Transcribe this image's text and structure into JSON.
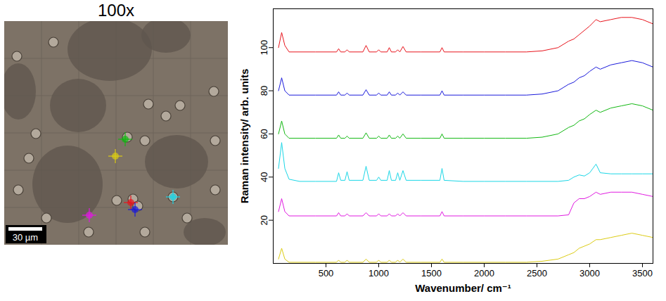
{
  "image": {
    "title": "100x",
    "scale_bar": "30 µm"
  },
  "chart_data": {
    "type": "line",
    "xlabel": "Wavenumber/ cm⁻¹",
    "ylabel": "Raman intensity/ arb. units",
    "xlim": [
      0,
      3600
    ],
    "ylim": [
      0,
      118
    ],
    "xticks": [
      500,
      1000,
      1500,
      2000,
      2500,
      3000,
      3500
    ],
    "yticks": [
      20,
      40,
      60,
      80,
      100
    ],
    "grid": false,
    "x": [
      50,
      80,
      110,
      150,
      250,
      400,
      600,
      620,
      640,
      680,
      700,
      720,
      850,
      880,
      910,
      980,
      1000,
      1020,
      1080,
      1100,
      1120,
      1160,
      1180,
      1200,
      1230,
      1260,
      1400,
      1580,
      1600,
      1620,
      1800,
      2000,
      2200,
      2400,
      2550,
      2700,
      2800,
      2850,
      2900,
      2950,
      3000,
      3060,
      3100,
      3200,
      3300,
      3400,
      3500,
      3600
    ],
    "series": [
      {
        "color": "#e8141c",
        "values": [
          100,
          107,
          101,
          98,
          98,
          98,
          98,
          99.5,
          98,
          98,
          99,
          98,
          98,
          101,
          98,
          98,
          99,
          98,
          98,
          100,
          98,
          98,
          99,
          98,
          100.5,
          98,
          98,
          98,
          100,
          98,
          98,
          98,
          98,
          98,
          98.5,
          100,
          103,
          104,
          106,
          108,
          110,
          113,
          112,
          113,
          114,
          114,
          113,
          111
        ]
      },
      {
        "color": "#1a1adb",
        "values": [
          80,
          86,
          80,
          78,
          78,
          78,
          78,
          79.5,
          78,
          78,
          79,
          78,
          78,
          80.5,
          78,
          78,
          79,
          78,
          78,
          79.5,
          78,
          78,
          79,
          78,
          79.5,
          78,
          78,
          78,
          80,
          78,
          78,
          78,
          78,
          78,
          78.5,
          80,
          83,
          84,
          86,
          87,
          89,
          91,
          90,
          92,
          93,
          94,
          93,
          91
        ]
      },
      {
        "color": "#12b812",
        "values": [
          60,
          66,
          60,
          58,
          58,
          58,
          58,
          59.5,
          58,
          58,
          59,
          58,
          58,
          60.5,
          58,
          58,
          59,
          58,
          58,
          59.5,
          58,
          58,
          59,
          58,
          60,
          58,
          58,
          58,
          60,
          58,
          58,
          58,
          58,
          58,
          58.5,
          60,
          63,
          64,
          66,
          67,
          69,
          71,
          70,
          72,
          73,
          74,
          73,
          71
        ]
      },
      {
        "color": "#1ad6e6",
        "values": [
          44,
          56,
          44,
          39,
          38,
          38,
          38,
          42,
          38.5,
          38.5,
          42.5,
          38.5,
          38.5,
          45,
          38.5,
          38.5,
          40,
          38.5,
          38.5,
          43,
          38.5,
          38.5,
          42,
          38.5,
          43,
          38.5,
          38.5,
          38.5,
          44,
          38.5,
          38,
          38,
          38,
          38,
          38,
          38,
          38.5,
          40,
          41,
          40.5,
          42,
          46,
          42,
          41.5,
          41.5,
          41.5,
          41.5,
          41.5
        ]
      },
      {
        "color": "#e01ae0",
        "values": [
          24,
          30,
          24,
          22,
          22,
          22,
          22,
          23.5,
          22,
          22,
          23,
          22,
          22,
          23.5,
          22,
          22,
          23,
          22,
          22,
          23,
          22,
          22,
          23,
          22,
          23.5,
          22,
          22,
          22,
          24,
          22,
          22,
          22,
          22,
          22,
          22,
          22,
          22.5,
          28,
          30,
          30,
          31,
          33,
          32,
          33,
          33,
          33,
          32,
          31
        ]
      },
      {
        "color": "#dccc14",
        "values": [
          2,
          7,
          2,
          0.5,
          0.5,
          0.5,
          0.5,
          1.5,
          0.5,
          0.5,
          1.5,
          0.5,
          0.5,
          2,
          0.5,
          0.5,
          1.5,
          0.5,
          0.5,
          1.5,
          0.5,
          0.5,
          1.5,
          0.5,
          2,
          0.5,
          0.5,
          0.5,
          2,
          0.5,
          0.5,
          0.5,
          0.5,
          0.5,
          1,
          2,
          4,
          5,
          7,
          8,
          9,
          11,
          11,
          12,
          13,
          14,
          13,
          12
        ]
      }
    ]
  }
}
